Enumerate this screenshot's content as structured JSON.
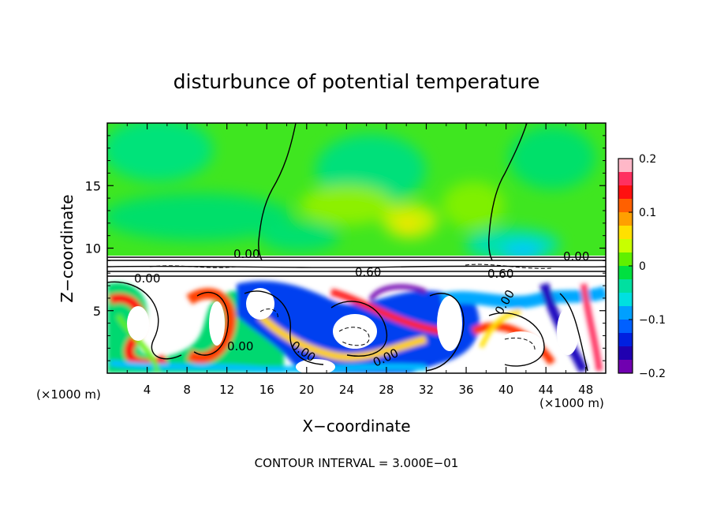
{
  "chart_data": {
    "type": "heatmap",
    "title": "disturbunce of potential temperature",
    "xlabel": "X−coordinate",
    "ylabel": "Z−coordinate",
    "x_unit_left": "(×1000 m)",
    "x_unit_right": "(×1000 m)",
    "xlim": [
      0,
      50
    ],
    "ylim": [
      0,
      20
    ],
    "x_ticks": [
      4,
      8,
      12,
      16,
      20,
      24,
      28,
      32,
      36,
      40,
      44,
      48
    ],
    "x_tick_labels": [
      "4",
      "8",
      "12",
      "16",
      "20",
      "24",
      "28",
      "32",
      "36",
      "40",
      "44",
      "48"
    ],
    "y_ticks": [
      5,
      10,
      15
    ],
    "y_tick_labels": [
      "5",
      "10",
      "15"
    ],
    "colorbar": {
      "range": [
        -0.2,
        0.2
      ],
      "ticks": [
        0.2,
        0.1,
        0,
        -0.1,
        -0.2
      ],
      "tick_labels": [
        "0.2",
        "0.1",
        "0",
        "−0.1",
        "−0.2"
      ],
      "colors": [
        "#ffb8c8",
        "#ff3060",
        "#ff1010",
        "#ff6000",
        "#ffa000",
        "#ffe000",
        "#c8ff00",
        "#60f000",
        "#00e040",
        "#00e0a0",
        "#00e0e0",
        "#00a0ff",
        "#0060ff",
        "#0020e0",
        "#2000b0",
        "#7000b0"
      ]
    },
    "contour_labels": [
      "0.00",
      "0.60",
      "0.00",
      "0.00",
      "0.00",
      "0.00",
      "0.60",
      "0.00",
      "0.00"
    ],
    "footer": "CONTOUR INTERVAL = 3.000E−01"
  }
}
